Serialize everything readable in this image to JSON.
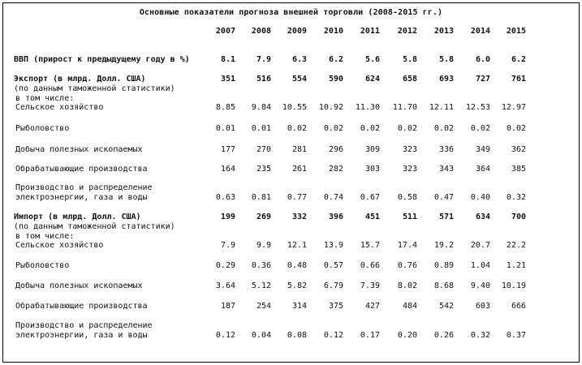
{
  "title": "Основные показатели прогноза внешней торговли (2008-2015 гг.)",
  "years": [
    "2007",
    "2008",
    "2009",
    "2010",
    "2011",
    "2012",
    "2013",
    "2014",
    "2015"
  ],
  "rows": [
    {
      "label": "ВВП (прирост к предыдущему году в %)",
      "bold": true,
      "values": [
        "8.1",
        "7.9",
        "6.3",
        "6.2",
        "5.6",
        "5.8",
        "5.8",
        "6.0",
        "6.2"
      ]
    },
    {
      "label": "Экспорт (в млрд. Долл. США)",
      "bold": true,
      "values": [
        "351",
        "516",
        "554",
        "590",
        "624",
        "658",
        "693",
        "727",
        "761"
      ]
    },
    {
      "label": "(по данным таможенной статистики)",
      "bold": false,
      "values": []
    },
    {
      "label": " в том числе:",
      "bold": false,
      "values": []
    },
    {
      "label": " Сельское хозяйство",
      "bold": false,
      "values": [
        "8.85",
        "9.84",
        "10.55",
        "10.92",
        "11.30",
        "11.70",
        "12.11",
        "12.53",
        "12.97"
      ]
    },
    {
      "label": " Рыболовство",
      "bold": false,
      "values": [
        "0.01",
        "0.01",
        "0.02",
        "0.02",
        "0.02",
        "0.02",
        "0.02",
        "0.02",
        "0.02"
      ]
    },
    {
      "label": " Добыча полезных ископаемых",
      "bold": false,
      "values": [
        "177",
        "270",
        "281",
        "296",
        "309",
        "323",
        "336",
        "349",
        "362"
      ]
    },
    {
      "label": " Обрабатывающие производства",
      "bold": false,
      "values": [
        "164",
        "235",
        "261",
        "282",
        "303",
        "323",
        "343",
        "364",
        "385"
      ]
    },
    {
      "label": " Производство и распределение",
      "bold": false,
      "values": []
    },
    {
      "label": " электроэнергии, газа и воды",
      "bold": false,
      "values": [
        "0.63",
        "0.81",
        "0.77",
        "0.74",
        "0.67",
        "0.58",
        "0.47",
        "0.40",
        "0.32"
      ]
    },
    {
      "label": "Импорт (в млрд. Долл. США)",
      "bold": true,
      "values": [
        "199",
        "269",
        "332",
        "396",
        "451",
        "511",
        "571",
        "634",
        "700"
      ]
    },
    {
      "label": "(по данным таможенной статистики)",
      "bold": false,
      "values": []
    },
    {
      "label": " в том числе:",
      "bold": false,
      "values": []
    },
    {
      "label": " Сельское хозяйство",
      "bold": false,
      "values": [
        "7.9",
        "9.9",
        "12.1",
        "13.9",
        "15.7",
        "17.4",
        "19.2",
        "20.7",
        "22.2"
      ]
    },
    {
      "label": " Рыболовство",
      "bold": false,
      "values": [
        "0.29",
        "0.36",
        "0.48",
        "0.57",
        "0.66",
        "0.76",
        "0.89",
        "1.04",
        "1.21"
      ]
    },
    {
      "label": " Добыча полезных ископаемых",
      "bold": false,
      "values": [
        "3.64",
        "5.12",
        "5.82",
        "6.79",
        "7.39",
        "8.02",
        "8.68",
        "9.40",
        "10.19"
      ]
    },
    {
      "label": " Обрабатывающие производства",
      "bold": false,
      "values": [
        "187",
        "254",
        "314",
        "375",
        "427",
        "484",
        "542",
        "603",
        "666"
      ]
    },
    {
      "label": " Производство и распределение",
      "bold": false,
      "values": []
    },
    {
      "label": " электроэнергии, газа и воды",
      "bold": false,
      "values": [
        "0.12",
        "0.04",
        "0.08",
        "0.12",
        "0.17",
        "0.20",
        "0.26",
        "0.32",
        "0.37"
      ]
    }
  ]
}
